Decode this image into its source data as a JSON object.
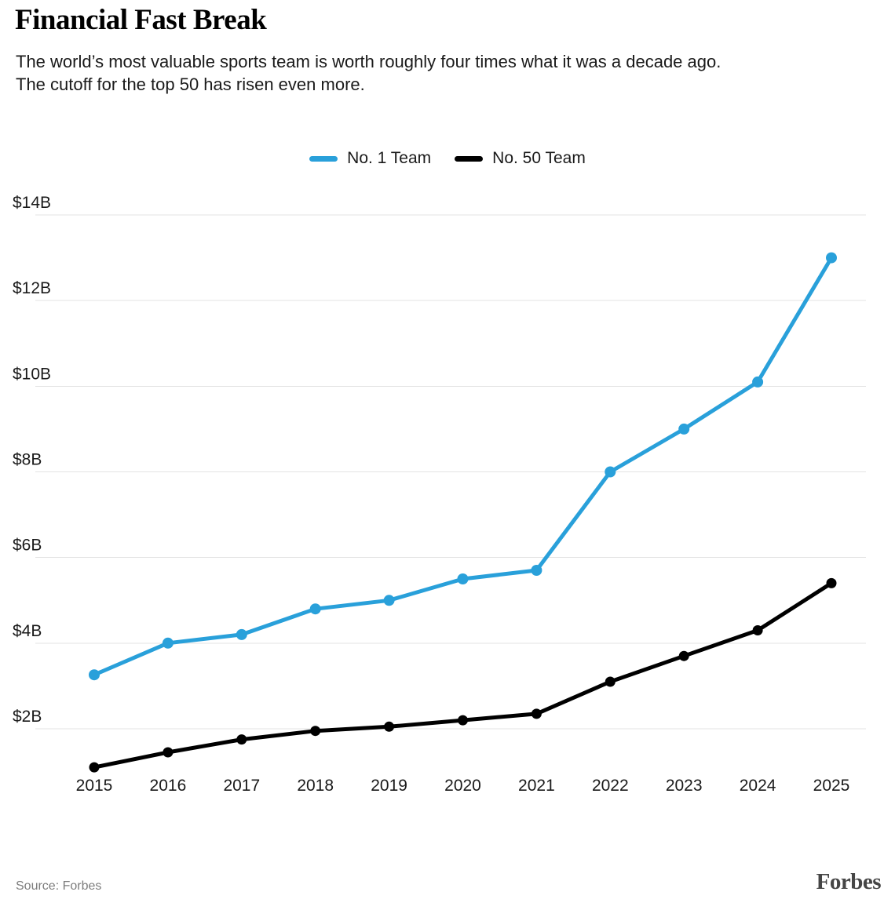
{
  "header": {
    "title": "Financial Fast Break",
    "subtitle_lines": [
      "The world’s most valuable sports team is worth roughly four times what it was a decade ago.",
      "The cutoff for the top 50 has risen even more."
    ]
  },
  "legend": {
    "items": [
      {
        "label": "No. 1 Team"
      },
      {
        "label": "No. 50 Team"
      }
    ]
  },
  "chart_data": {
    "type": "line",
    "title": "Financial Fast Break",
    "x": [
      "2015",
      "2016",
      "2017",
      "2018",
      "2019",
      "2020",
      "2021",
      "2022",
      "2023",
      "2024",
      "2025"
    ],
    "series": [
      {
        "name": "No. 1 Team",
        "color": "#29A0DA",
        "point_radius": 7,
        "values": [
          3.26,
          4.0,
          4.2,
          4.8,
          5.0,
          5.5,
          5.7,
          8.0,
          9.0,
          10.1,
          13.0
        ]
      },
      {
        "name": "No. 50 Team",
        "color": "#000000",
        "point_radius": 6.5,
        "values": [
          1.1,
          1.45,
          1.75,
          1.95,
          2.05,
          2.2,
          2.35,
          3.1,
          3.7,
          4.3,
          5.4
        ]
      }
    ],
    "xlabel": "",
    "ylabel": "",
    "yticks": [
      2,
      4,
      6,
      8,
      10,
      12,
      14
    ],
    "ytick_labels": [
      "$2B",
      "$4B",
      "$6B",
      "$8B",
      "$10B",
      "$12B",
      "$14B"
    ],
    "ylim": [
      1.0,
      14.6
    ],
    "grid": true,
    "legend_position": "top-center",
    "gridline_color": "#e3e3e3",
    "axis_text_color": "#1a1a1a"
  },
  "footer": {
    "source": "Source: Forbes",
    "brand": "Forbes"
  }
}
